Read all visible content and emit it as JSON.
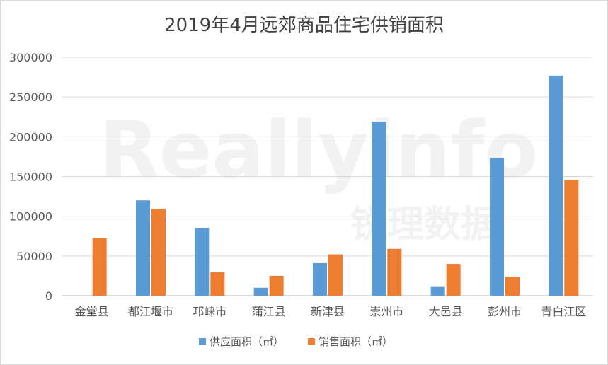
{
  "chart_data": {
    "type": "bar",
    "title": "2019年4月远郊商品住宅供销面积",
    "categories": [
      "金堂县",
      "都江堰市",
      "邛崃市",
      "蒲江县",
      "新津县",
      "崇州市",
      "大邑县",
      "彭州市",
      "青白江区"
    ],
    "series": [
      {
        "name": "供应面积（㎡）",
        "color": "#5b9bd5",
        "values": [
          0,
          120000,
          85000,
          10000,
          41000,
          219000,
          11000,
          173000,
          277000
        ]
      },
      {
        "name": "销售面积（㎡）",
        "color": "#ed7d31",
        "values": [
          73000,
          109000,
          30000,
          25000,
          52000,
          59000,
          40000,
          24000,
          146000
        ]
      }
    ],
    "yticks": [
      "0",
      "50000",
      "100000",
      "150000",
      "200000",
      "250000",
      "300000"
    ],
    "ylim": [
      0,
      300000
    ],
    "grid": true,
    "legend": "bottom"
  },
  "watermark": {
    "text_latin": "Reallyinfo",
    "text_cn": "锐理数据"
  }
}
